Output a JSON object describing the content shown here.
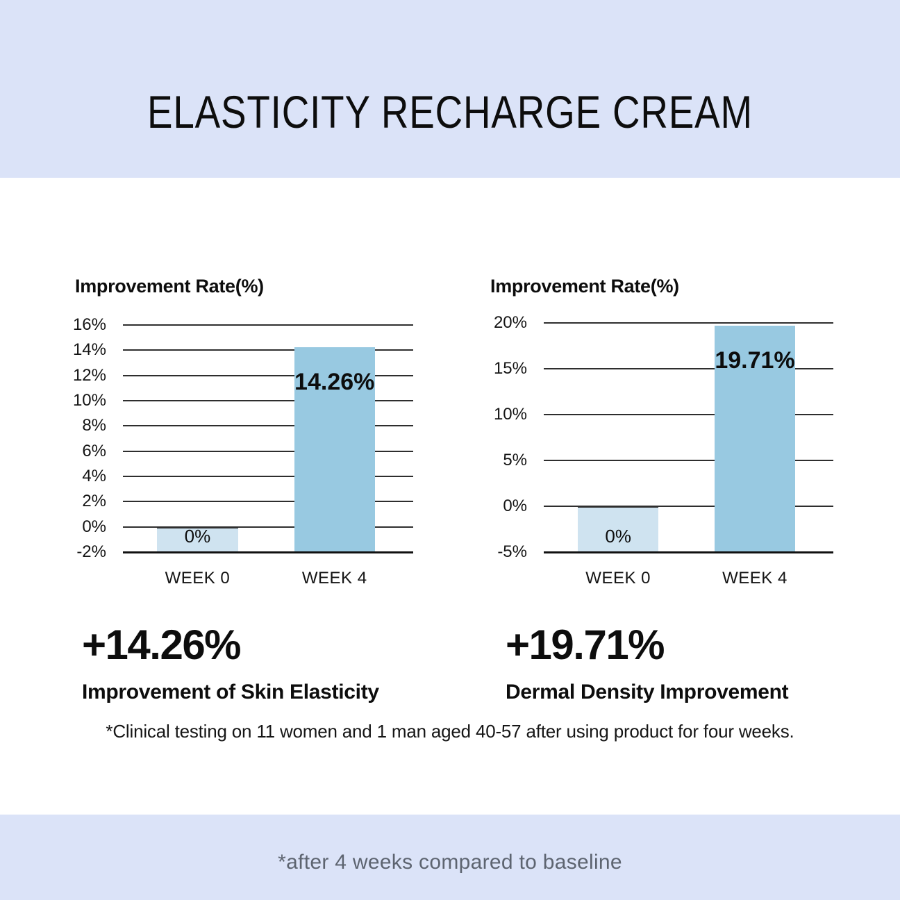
{
  "header": {
    "title": "ELASTICITY RECHARGE CREAM"
  },
  "chart_data": [
    {
      "type": "bar",
      "title": "Improvement Rate(%)",
      "categories": [
        "WEEK 0",
        "WEEK 4"
      ],
      "values": [
        0,
        14.26
      ],
      "bar_labels": [
        "0%",
        "14.26%"
      ],
      "yticks": [
        16,
        14,
        12,
        10,
        8,
        6,
        4,
        2,
        0,
        -2
      ],
      "ytick_labels": [
        "16%",
        "14%",
        "12%",
        "10%",
        "8%",
        "6%",
        "4%",
        "2%",
        "0%",
        "-2%"
      ],
      "ylim": [
        -2,
        16
      ],
      "grid": true,
      "legend": "none",
      "bar_colors": [
        "#cfe3f0",
        "#98c9e1"
      ]
    },
    {
      "type": "bar",
      "title": "Improvement Rate(%)",
      "categories": [
        "WEEK 0",
        "WEEK 4"
      ],
      "values": [
        0,
        19.71
      ],
      "bar_labels": [
        "0%",
        "19.71%"
      ],
      "yticks": [
        20,
        15,
        10,
        5,
        0,
        -5
      ],
      "ytick_labels": [
        "20%",
        "15%",
        "10%",
        "5%",
        "0%",
        "-5%"
      ],
      "ylim": [
        -5,
        20
      ],
      "grid": true,
      "legend": "none",
      "bar_colors": [
        "#cfe3f0",
        "#98c9e1"
      ]
    }
  ],
  "results": [
    {
      "value": "+14.26%",
      "label": "Improvement of Skin Elasticity"
    },
    {
      "value": "+19.71%",
      "label": "Dermal Density Improvement"
    }
  ],
  "footnote": "*Clinical testing on 11 women and 1 man aged 40-57 after using product for four weeks.",
  "bottom_note": "*after 4 weeks compared to baseline",
  "colors": {
    "banner_bg": "#dbe3f8",
    "bar_week0": "#cfe3f0",
    "bar_week4": "#98c9e1",
    "grid": "#2e2e2e",
    "note_text": "#5d6470"
  }
}
